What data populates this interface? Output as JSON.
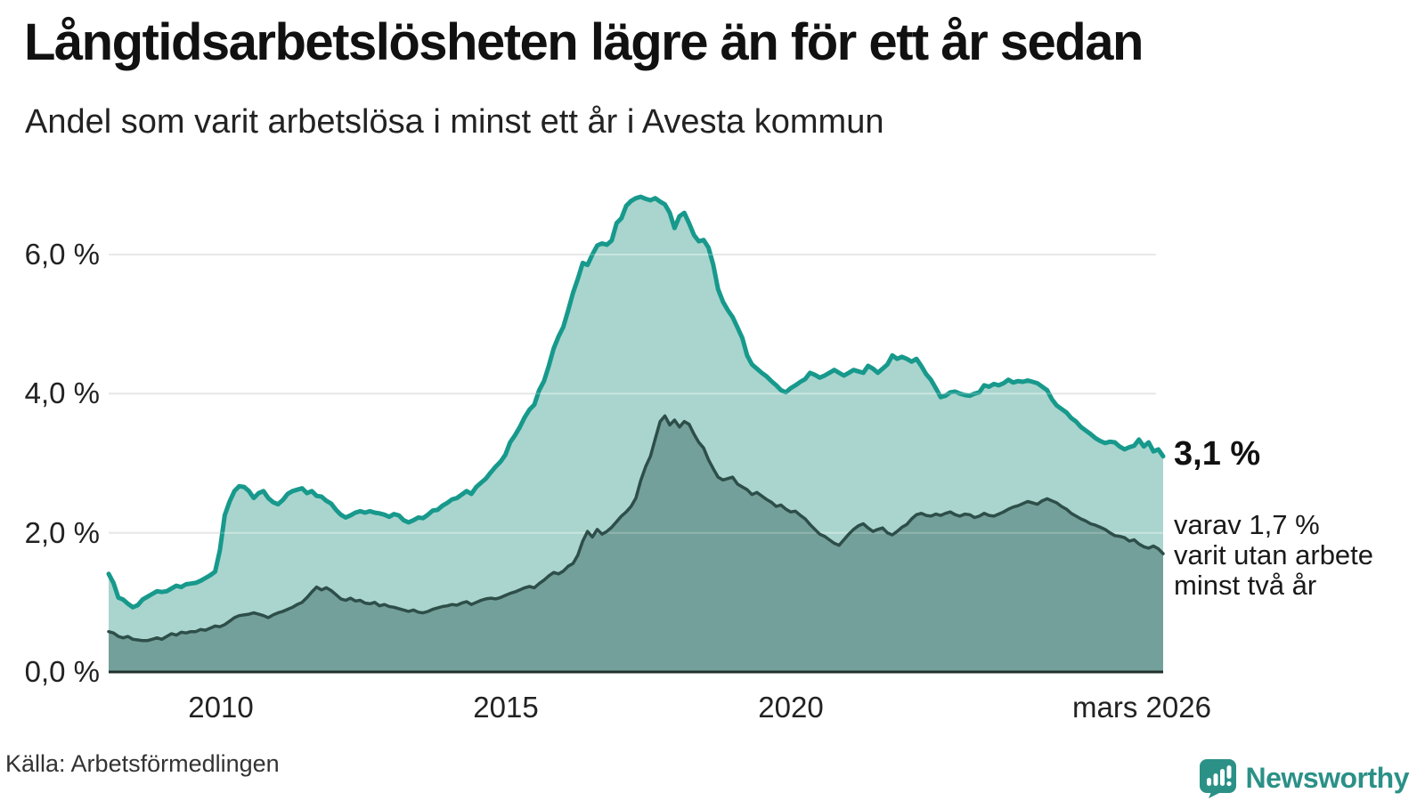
{
  "header": {
    "title": "Långtidsarbetslösheten lägre än för ett år sedan",
    "subtitle": "Andel som varit arbetslösa i minst ett år i Avesta kommun"
  },
  "chart_data": {
    "type": "area",
    "title": "Långtidsarbetslösheten lägre än för ett år sedan",
    "subtitle": "Andel som varit arbetslösa i minst ett år i Avesta kommun",
    "x_start": 2008.0,
    "x_end": 2026.1667,
    "x_step_months": 1,
    "ylim": [
      0,
      7.1
    ],
    "grid": true,
    "legend": "none",
    "yticks": [
      {
        "value": 0,
        "label": "0,0 %"
      },
      {
        "value": 2,
        "label": "2,0 %"
      },
      {
        "value": 4,
        "label": "4,0 %"
      },
      {
        "value": 6,
        "label": "6,0 %"
      }
    ],
    "xticks": [
      {
        "value": 2010,
        "label": "2010"
      },
      {
        "value": 2015,
        "label": "2015"
      },
      {
        "value": 2020,
        "label": "2020"
      },
      {
        "value": 2026.1667,
        "label": "mars 2026"
      }
    ],
    "series": [
      {
        "name": "Andel som varit arbetslösa minst ett år",
        "line_color": "#17998c",
        "fill_color": "#a9d5ce",
        "line_width": 5,
        "last_value": "3,1 %",
        "values": [
          1.41,
          1.28,
          1.07,
          1.04,
          0.98,
          0.93,
          0.96,
          1.04,
          1.08,
          1.12,
          1.16,
          1.15,
          1.16,
          1.2,
          1.24,
          1.22,
          1.26,
          1.27,
          1.28,
          1.31,
          1.35,
          1.39,
          1.44,
          1.75,
          2.25,
          2.45,
          2.6,
          2.67,
          2.66,
          2.6,
          2.5,
          2.57,
          2.6,
          2.5,
          2.44,
          2.41,
          2.47,
          2.56,
          2.6,
          2.62,
          2.64,
          2.57,
          2.6,
          2.53,
          2.52,
          2.46,
          2.42,
          2.33,
          2.26,
          2.22,
          2.25,
          2.29,
          2.31,
          2.29,
          2.31,
          2.29,
          2.28,
          2.26,
          2.23,
          2.27,
          2.25,
          2.18,
          2.15,
          2.18,
          2.22,
          2.21,
          2.26,
          2.32,
          2.33,
          2.39,
          2.43,
          2.48,
          2.5,
          2.55,
          2.6,
          2.56,
          2.66,
          2.72,
          2.78,
          2.87,
          2.95,
          3.02,
          3.12,
          3.3,
          3.4,
          3.52,
          3.66,
          3.77,
          3.84,
          4.05,
          4.18,
          4.4,
          4.65,
          4.82,
          4.96,
          5.2,
          5.45,
          5.65,
          5.88,
          5.85,
          6.0,
          6.13,
          6.16,
          6.14,
          6.2,
          6.45,
          6.52,
          6.7,
          6.77,
          6.81,
          6.83,
          6.8,
          6.78,
          6.81,
          6.76,
          6.72,
          6.6,
          6.38,
          6.55,
          6.6,
          6.45,
          6.28,
          6.19,
          6.21,
          6.1,
          5.85,
          5.5,
          5.32,
          5.2,
          5.1,
          4.95,
          4.8,
          4.55,
          4.42,
          4.36,
          4.3,
          4.25,
          4.18,
          4.12,
          4.05,
          4.02,
          4.08,
          4.12,
          4.17,
          4.21,
          4.3,
          4.27,
          4.23,
          4.26,
          4.3,
          4.34,
          4.3,
          4.26,
          4.3,
          4.34,
          4.32,
          4.3,
          4.4,
          4.36,
          4.3,
          4.36,
          4.42,
          4.55,
          4.5,
          4.53,
          4.5,
          4.46,
          4.5,
          4.4,
          4.28,
          4.2,
          4.08,
          3.95,
          3.97,
          4.02,
          4.03,
          4.0,
          3.98,
          3.97,
          4.0,
          4.02,
          4.12,
          4.1,
          4.14,
          4.12,
          4.15,
          4.2,
          4.16,
          4.18,
          4.17,
          4.19,
          4.17,
          4.15,
          4.1,
          4.05,
          3.92,
          3.83,
          3.78,
          3.73,
          3.65,
          3.6,
          3.52,
          3.47,
          3.42,
          3.36,
          3.32,
          3.29,
          3.31,
          3.3,
          3.24,
          3.2,
          3.23,
          3.25,
          3.34,
          3.24,
          3.3,
          3.17,
          3.2,
          3.1
        ]
      },
      {
        "name": "varav utan arbete minst två år",
        "line_color": "#2e4e49",
        "fill_color": "#73a09a",
        "line_width": 3.5,
        "last_value": "1,7 %",
        "values": [
          0.58,
          0.56,
          0.51,
          0.49,
          0.51,
          0.47,
          0.46,
          0.45,
          0.45,
          0.47,
          0.49,
          0.47,
          0.51,
          0.55,
          0.53,
          0.57,
          0.56,
          0.58,
          0.58,
          0.61,
          0.6,
          0.63,
          0.66,
          0.65,
          0.68,
          0.73,
          0.78,
          0.81,
          0.82,
          0.83,
          0.85,
          0.83,
          0.81,
          0.78,
          0.82,
          0.85,
          0.87,
          0.9,
          0.93,
          0.97,
          1.0,
          1.07,
          1.15,
          1.22,
          1.18,
          1.21,
          1.17,
          1.11,
          1.05,
          1.03,
          1.06,
          1.02,
          1.03,
          0.99,
          0.98,
          1.0,
          0.95,
          0.97,
          0.94,
          0.93,
          0.91,
          0.89,
          0.87,
          0.89,
          0.86,
          0.85,
          0.87,
          0.9,
          0.92,
          0.94,
          0.95,
          0.97,
          0.96,
          0.99,
          1.01,
          0.97,
          1.0,
          1.03,
          1.05,
          1.06,
          1.05,
          1.07,
          1.1,
          1.13,
          1.15,
          1.18,
          1.21,
          1.23,
          1.21,
          1.27,
          1.32,
          1.38,
          1.43,
          1.41,
          1.45,
          1.52,
          1.56,
          1.68,
          1.88,
          2.02,
          1.94,
          2.05,
          1.98,
          2.02,
          2.08,
          2.16,
          2.24,
          2.3,
          2.38,
          2.5,
          2.75,
          2.95,
          3.1,
          3.35,
          3.6,
          3.68,
          3.55,
          3.62,
          3.52,
          3.6,
          3.56,
          3.42,
          3.3,
          3.22,
          3.05,
          2.92,
          2.8,
          2.76,
          2.78,
          2.8,
          2.7,
          2.66,
          2.62,
          2.55,
          2.58,
          2.53,
          2.48,
          2.44,
          2.38,
          2.4,
          2.34,
          2.3,
          2.31,
          2.25,
          2.2,
          2.12,
          2.05,
          1.98,
          1.95,
          1.9,
          1.85,
          1.82,
          1.9,
          1.98,
          2.05,
          2.1,
          2.13,
          2.07,
          2.02,
          2.05,
          2.07,
          2.0,
          1.97,
          2.02,
          2.08,
          2.12,
          2.2,
          2.26,
          2.28,
          2.25,
          2.24,
          2.27,
          2.25,
          2.28,
          2.3,
          2.26,
          2.24,
          2.27,
          2.26,
          2.22,
          2.24,
          2.28,
          2.25,
          2.24,
          2.27,
          2.3,
          2.34,
          2.37,
          2.39,
          2.42,
          2.45,
          2.43,
          2.41,
          2.46,
          2.49,
          2.46,
          2.43,
          2.38,
          2.34,
          2.28,
          2.24,
          2.2,
          2.17,
          2.13,
          2.11,
          2.08,
          2.05,
          2.0,
          1.96,
          1.95,
          1.93,
          1.88,
          1.9,
          1.84,
          1.8,
          1.78,
          1.81,
          1.77,
          1.7
        ]
      }
    ],
    "annotations": {
      "primary": "3,1 %",
      "secondary": [
        "varav 1,7 %",
        "varit utan arbete",
        "minst två år"
      ]
    }
  },
  "footer": {
    "source": "Källa: Arbetsförmedlingen",
    "brand": "Newsworthy"
  },
  "colors": {
    "accent_teal": "#17998c",
    "fill_light": "#a9d5ce",
    "fill_dark": "#73a09a",
    "line_dark": "#2e4e49",
    "grid": "#d8dad9",
    "axis_line": "#20302c",
    "text_dark": "#111111",
    "brand_teal": "#2b9187"
  }
}
